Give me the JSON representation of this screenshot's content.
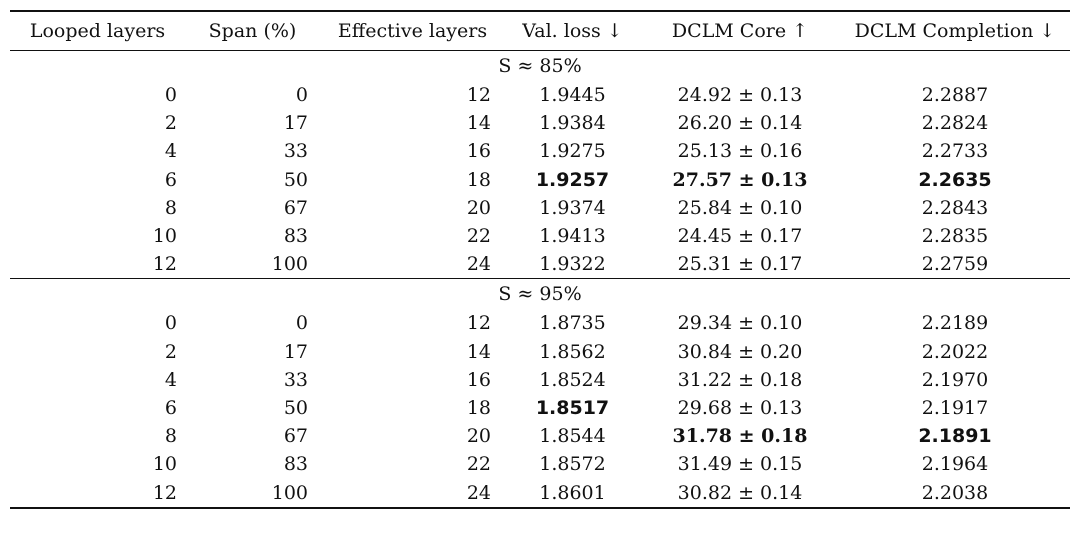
{
  "table": {
    "headers": [
      "Looped layers",
      "Span (%)",
      "Effective layers",
      "Val. loss ↓",
      "DCLM Core ↑",
      "DCLM Completion ↓"
    ],
    "sections": [
      {
        "label": "S ≈ 85%",
        "rows": [
          {
            "looped": "0",
            "span": "0",
            "effective": "12",
            "val_loss": "1.9445",
            "core": "24.92 ± 0.13",
            "completion": "2.2887"
          },
          {
            "looped": "2",
            "span": "17",
            "effective": "14",
            "val_loss": "1.9384",
            "core": "26.20 ± 0.14",
            "completion": "2.2824"
          },
          {
            "looped": "4",
            "span": "33",
            "effective": "16",
            "val_loss": "1.9275",
            "core": "25.13 ± 0.16",
            "completion": "2.2733"
          },
          {
            "looped": "6",
            "span": "50",
            "effective": "18",
            "val_loss": "1.9257",
            "core": "27.57 ± 0.13",
            "completion": "2.2635",
            "bold_val_loss": true,
            "bold_core": true,
            "bold_completion": true
          },
          {
            "looped": "8",
            "span": "67",
            "effective": "20",
            "val_loss": "1.9374",
            "core": "25.84 ± 0.10",
            "completion": "2.2843"
          },
          {
            "looped": "10",
            "span": "83",
            "effective": "22",
            "val_loss": "1.9413",
            "core": "24.45 ± 0.17",
            "completion": "2.2835"
          },
          {
            "looped": "12",
            "span": "100",
            "effective": "24",
            "val_loss": "1.9322",
            "core": "25.31 ± 0.17",
            "completion": "2.2759"
          }
        ]
      },
      {
        "label": "S ≈ 95%",
        "rows": [
          {
            "looped": "0",
            "span": "0",
            "effective": "12",
            "val_loss": "1.8735",
            "core": "29.34 ± 0.10",
            "completion": "2.2189"
          },
          {
            "looped": "2",
            "span": "17",
            "effective": "14",
            "val_loss": "1.8562",
            "core": "30.84 ± 0.20",
            "completion": "2.2022"
          },
          {
            "looped": "4",
            "span": "33",
            "effective": "16",
            "val_loss": "1.8524",
            "core": "31.22 ± 0.18",
            "completion": "2.1970"
          },
          {
            "looped": "6",
            "span": "50",
            "effective": "18",
            "val_loss": "1.8517",
            "core": "29.68 ± 0.13",
            "completion": "2.1917",
            "bold_val_loss": true
          },
          {
            "looped": "8",
            "span": "67",
            "effective": "20",
            "val_loss": "1.8544",
            "core": "31.78 ± 0.18",
            "completion": "2.1891",
            "bold_core": true,
            "bold_completion": true
          },
          {
            "looped": "10",
            "span": "83",
            "effective": "22",
            "val_loss": "1.8572",
            "core": "31.49 ± 0.15",
            "completion": "2.1964"
          },
          {
            "looped": "12",
            "span": "100",
            "effective": "24",
            "val_loss": "1.8601",
            "core": "30.82 ± 0.14",
            "completion": "2.2038"
          }
        ]
      }
    ]
  }
}
